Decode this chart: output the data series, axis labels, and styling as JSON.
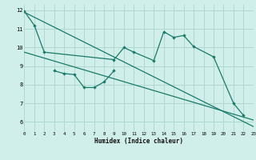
{
  "xlabel": "Humidex (Indice chaleur)",
  "xlim": [
    0,
    23
  ],
  "ylim": [
    5.5,
    12.3
  ],
  "yticks": [
    6,
    7,
    8,
    9,
    10,
    11,
    12
  ],
  "xticks": [
    0,
    1,
    2,
    3,
    4,
    5,
    6,
    7,
    8,
    9,
    10,
    11,
    12,
    13,
    14,
    15,
    16,
    17,
    18,
    19,
    20,
    21,
    22,
    23
  ],
  "background_color": "#d0eeea",
  "grid_color": "#b0d8d0",
  "line_color": "#1a7a6a",
  "line1_x": [
    0,
    1,
    2,
    9,
    10,
    11,
    13,
    14,
    15,
    16,
    17,
    19,
    21,
    22
  ],
  "line1_y": [
    11.95,
    11.2,
    9.75,
    9.35,
    10.0,
    9.75,
    9.3,
    10.85,
    10.55,
    10.65,
    10.05,
    9.5,
    7.0,
    6.35
  ],
  "line2_x": [
    3,
    4,
    5,
    6,
    7,
    8,
    9
  ],
  "line2_y": [
    8.75,
    8.6,
    8.55,
    7.85,
    7.85,
    8.15,
    8.75
  ],
  "line3_x": [
    0,
    23
  ],
  "line3_y": [
    11.9,
    5.75
  ],
  "line4_x": [
    0,
    23
  ],
  "line4_y": [
    9.75,
    6.1
  ]
}
